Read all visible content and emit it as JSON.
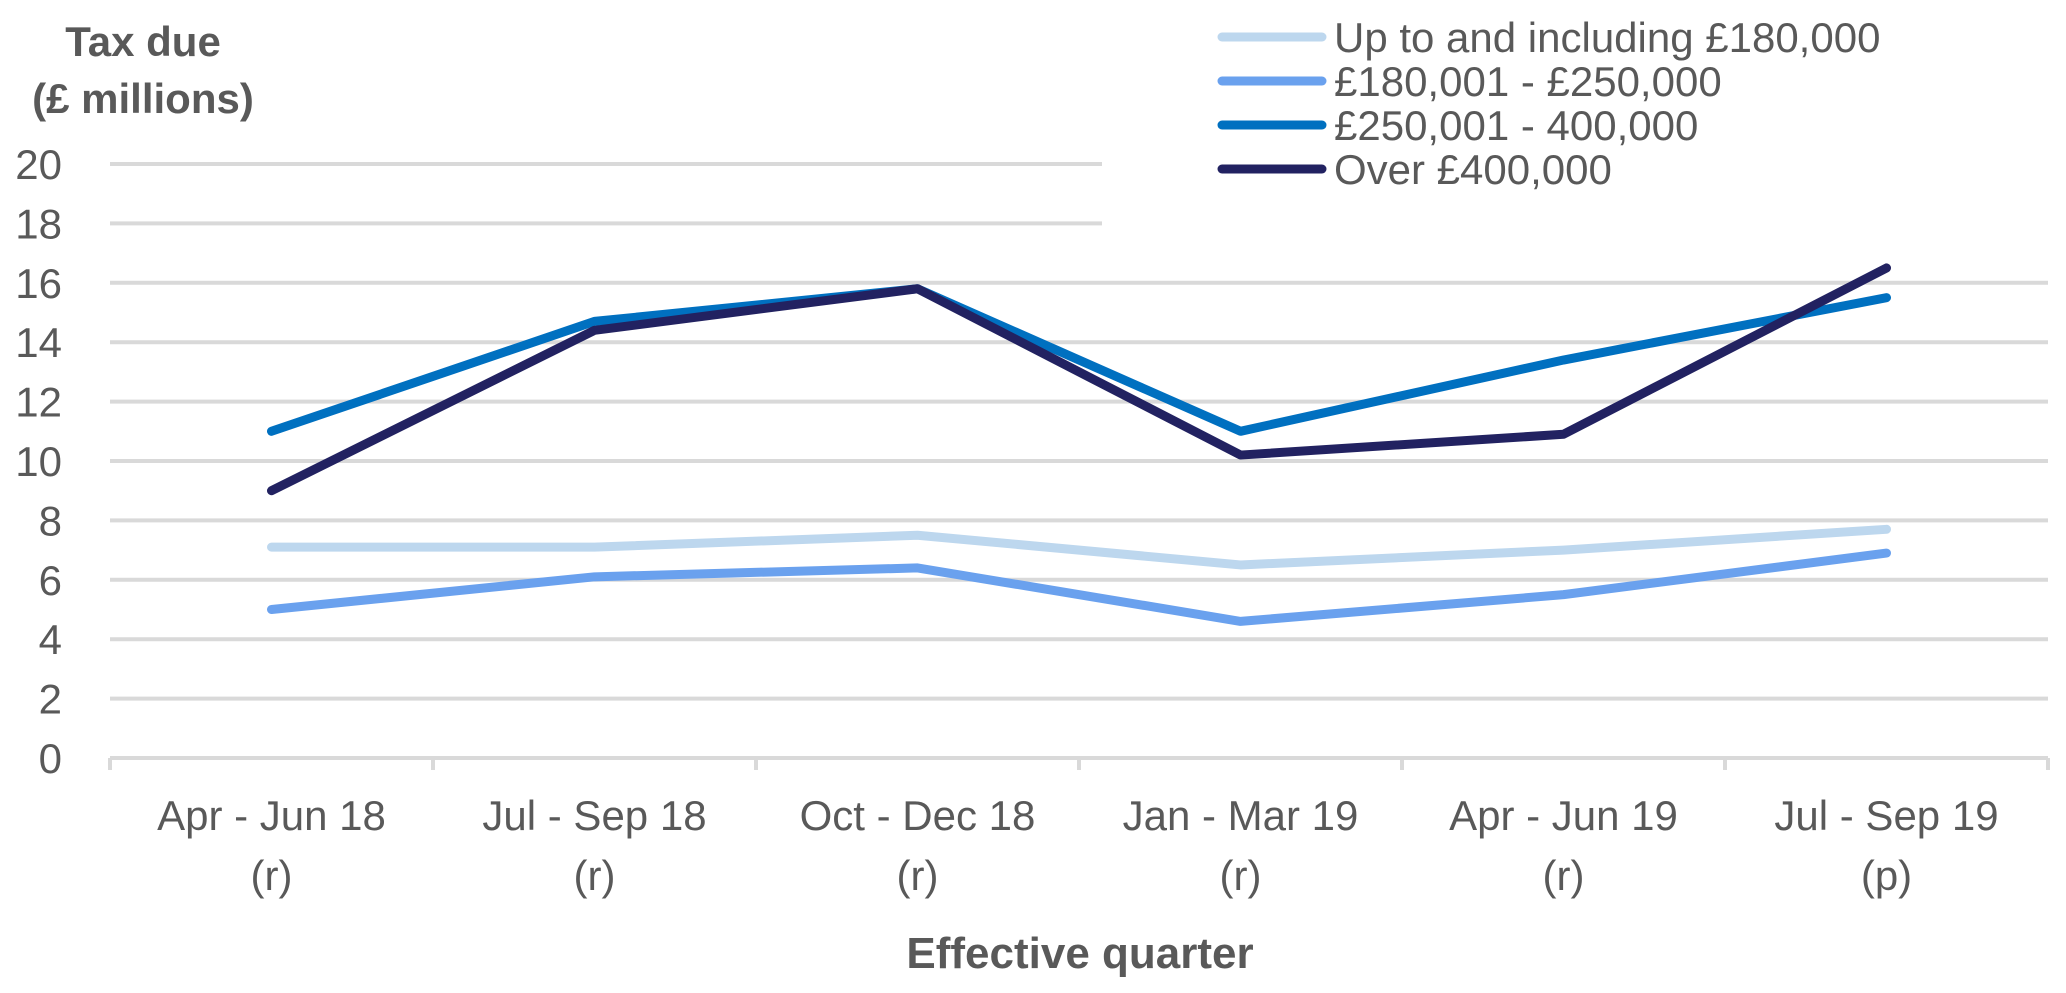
{
  "chart_data": {
    "type": "line",
    "ylabel_line1": "Tax due",
    "ylabel_line2": "(£ millions)",
    "xlabel": "Effective quarter",
    "ylim": [
      0,
      20
    ],
    "yticks": [
      0,
      2,
      4,
      6,
      8,
      10,
      12,
      14,
      16,
      18,
      20
    ],
    "grid": true,
    "legend_position": "top-right",
    "categories": [
      {
        "line1": "Apr - Jun 18",
        "line2": "(r)"
      },
      {
        "line1": "Jul - Sep 18",
        "line2": "(r)"
      },
      {
        "line1": "Oct - Dec 18",
        "line2": "(r)"
      },
      {
        "line1": "Jan - Mar 19",
        "line2": "(r)"
      },
      {
        "line1": "Apr - Jun 19",
        "line2": "(r)"
      },
      {
        "line1": "Jul - Sep 19",
        "line2": "(p)"
      }
    ],
    "series": [
      {
        "name": "Up to and including £180,000",
        "color": "#BDD7EE",
        "values": [
          7.1,
          7.1,
          7.5,
          6.5,
          7.0,
          7.7
        ]
      },
      {
        "name": "£180,001 - £250,000",
        "color": "#6AA1EE",
        "values": [
          5.0,
          6.1,
          6.4,
          4.6,
          5.5,
          6.9
        ]
      },
      {
        "name": "£250,001 - 400,000",
        "color": "#0070C0",
        "values": [
          11.0,
          14.7,
          15.8,
          11.0,
          13.4,
          15.5
        ]
      },
      {
        "name": "Over £400,000",
        "color": "#222261",
        "values": [
          9.0,
          14.4,
          15.8,
          10.2,
          10.9,
          16.5
        ]
      }
    ],
    "axis_color": "#D9D9D9",
    "text_color": "#595959"
  }
}
